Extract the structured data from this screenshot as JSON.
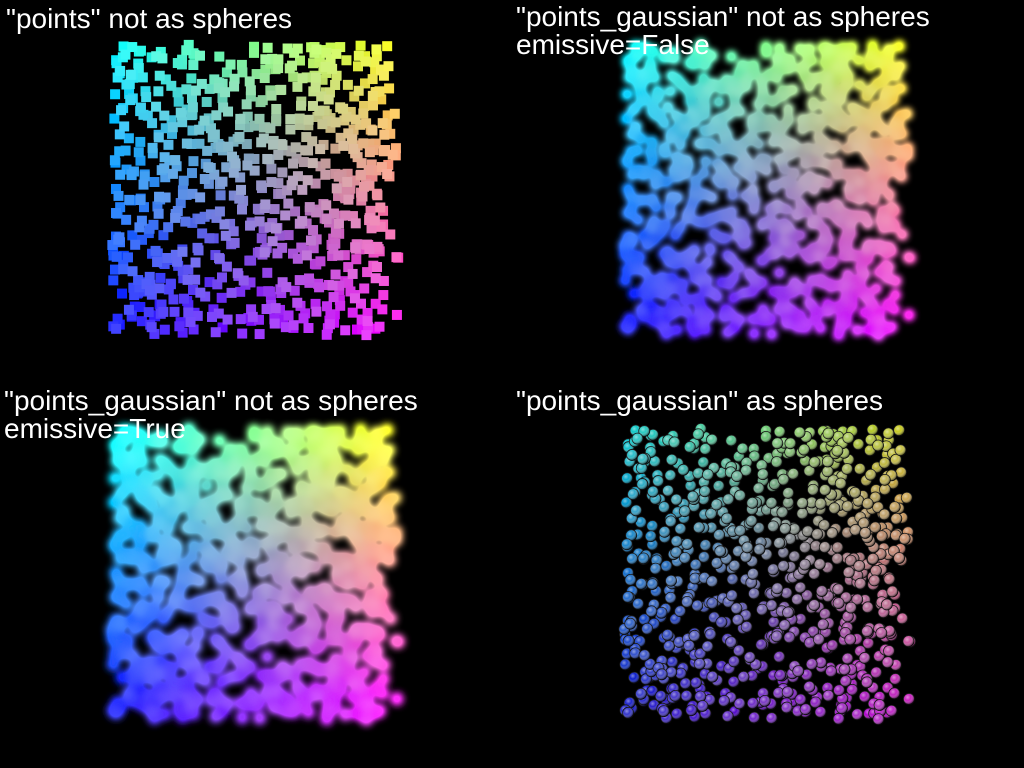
{
  "panels": [
    {
      "title": "\"points\" not as spheres"
    },
    {
      "title": "\"points_gaussian\" not as spheres",
      "subtitle": "emissive=False"
    },
    {
      "title": "\"points_gaussian\" not as spheres",
      "subtitle": "emissive=True"
    },
    {
      "title": "\"points_gaussian\" as spheres"
    }
  ]
}
